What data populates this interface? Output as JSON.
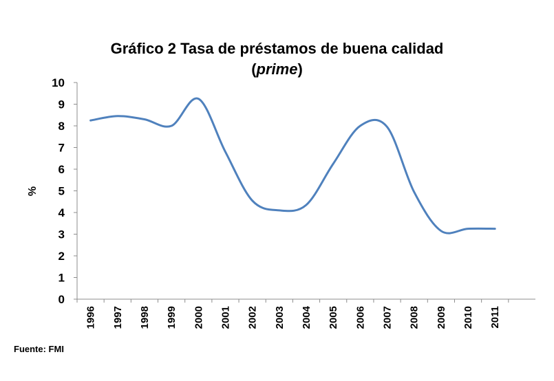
{
  "chart_data": {
    "type": "line",
    "title_line1": "Gráfico 2 Tasa de préstamos de buena calidad",
    "title_line2_open": "(",
    "title_line2_italic": "prime",
    "title_line2_close": ")",
    "xlabel": "",
    "ylabel": "%",
    "ylim": [
      0,
      10
    ],
    "yticks": [
      "0",
      "1",
      "2",
      "3",
      "4",
      "5",
      "6",
      "7",
      "8",
      "9",
      "10"
    ],
    "categories": [
      "1996",
      "1997",
      "1998",
      "1999",
      "2000",
      "2001",
      "2002",
      "2003",
      "2004",
      "2005",
      "2006",
      "2007",
      "2008",
      "2009",
      "2010",
      "2011"
    ],
    "series": [
      {
        "values": [
          8.25,
          8.45,
          8.3,
          8.0,
          9.25,
          6.8,
          4.55,
          4.1,
          4.35,
          6.25,
          8.0,
          7.95,
          4.95,
          3.15,
          3.25,
          3.25
        ],
        "color": "#4f81bd"
      }
    ],
    "grid": false,
    "legend": "none",
    "source": "Fuente: FMI"
  }
}
